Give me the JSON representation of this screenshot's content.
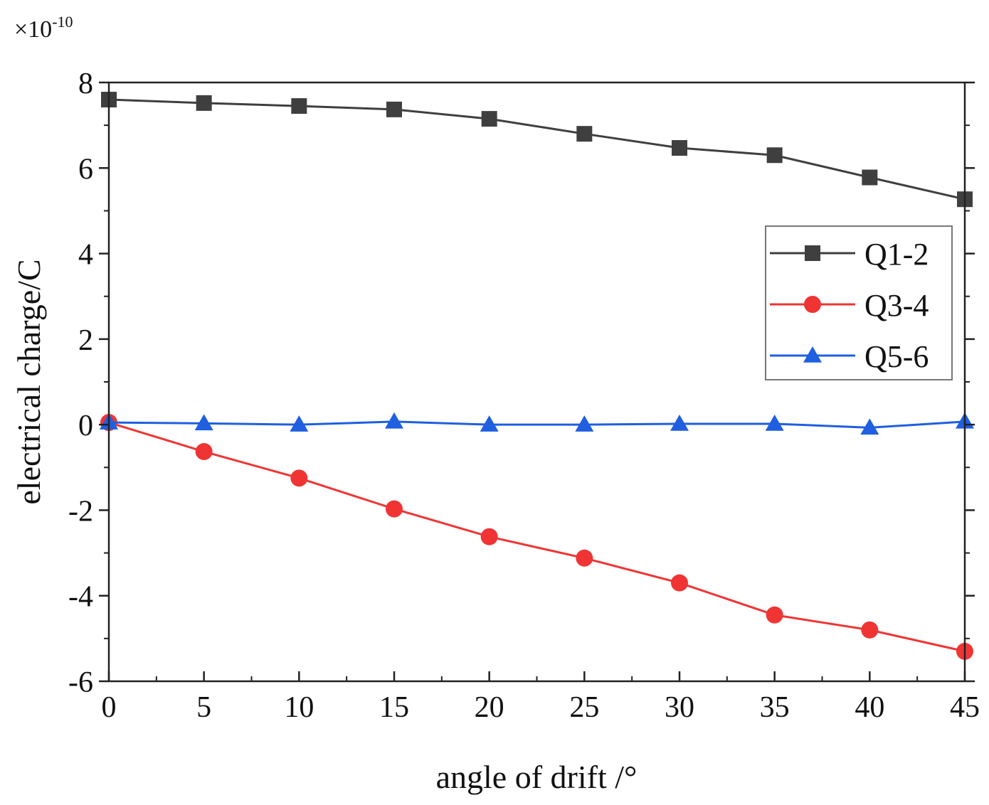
{
  "chart_data": {
    "type": "line",
    "title": "",
    "xlabel": "angle of drift /°",
    "ylabel": "electrical charge/C",
    "y_multiplier": {
      "base": "×10",
      "exponent": "-10"
    },
    "x": [
      0,
      5,
      10,
      15,
      20,
      25,
      30,
      35,
      40,
      45
    ],
    "xlim": [
      0,
      45
    ],
    "ylim": [
      -6,
      8
    ],
    "xticks": [
      0,
      5,
      10,
      15,
      20,
      25,
      30,
      35,
      40,
      45
    ],
    "xtick_labels": [
      "0",
      "5",
      "10",
      "15",
      "20",
      "25",
      "30",
      "35",
      "40",
      "45"
    ],
    "yticks": [
      -6,
      -4,
      -2,
      0,
      2,
      4,
      6,
      8
    ],
    "ytick_labels": [
      "-6",
      "-4",
      "-2",
      "0",
      "2",
      "4",
      "6",
      "8"
    ],
    "grid": false,
    "legend_position": "right-middle",
    "series": [
      {
        "name": "Q1-2",
        "color": "#3f3f3f",
        "marker": "square",
        "values": [
          7.6,
          7.52,
          7.45,
          7.37,
          7.15,
          6.8,
          6.47,
          6.3,
          5.78,
          5.27
        ]
      },
      {
        "name": "Q3-4",
        "color": "#f03434",
        "marker": "circle",
        "values": [
          0.05,
          -0.63,
          -1.25,
          -1.97,
          -2.62,
          -3.12,
          -3.7,
          -4.45,
          -4.8,
          -5.3
        ]
      },
      {
        "name": "Q5-6",
        "color": "#1f5fe0",
        "marker": "triangle",
        "values": [
          0.05,
          0.03,
          0.0,
          0.07,
          0.0,
          0.0,
          0.02,
          0.02,
          -0.07,
          0.07
        ]
      }
    ]
  }
}
